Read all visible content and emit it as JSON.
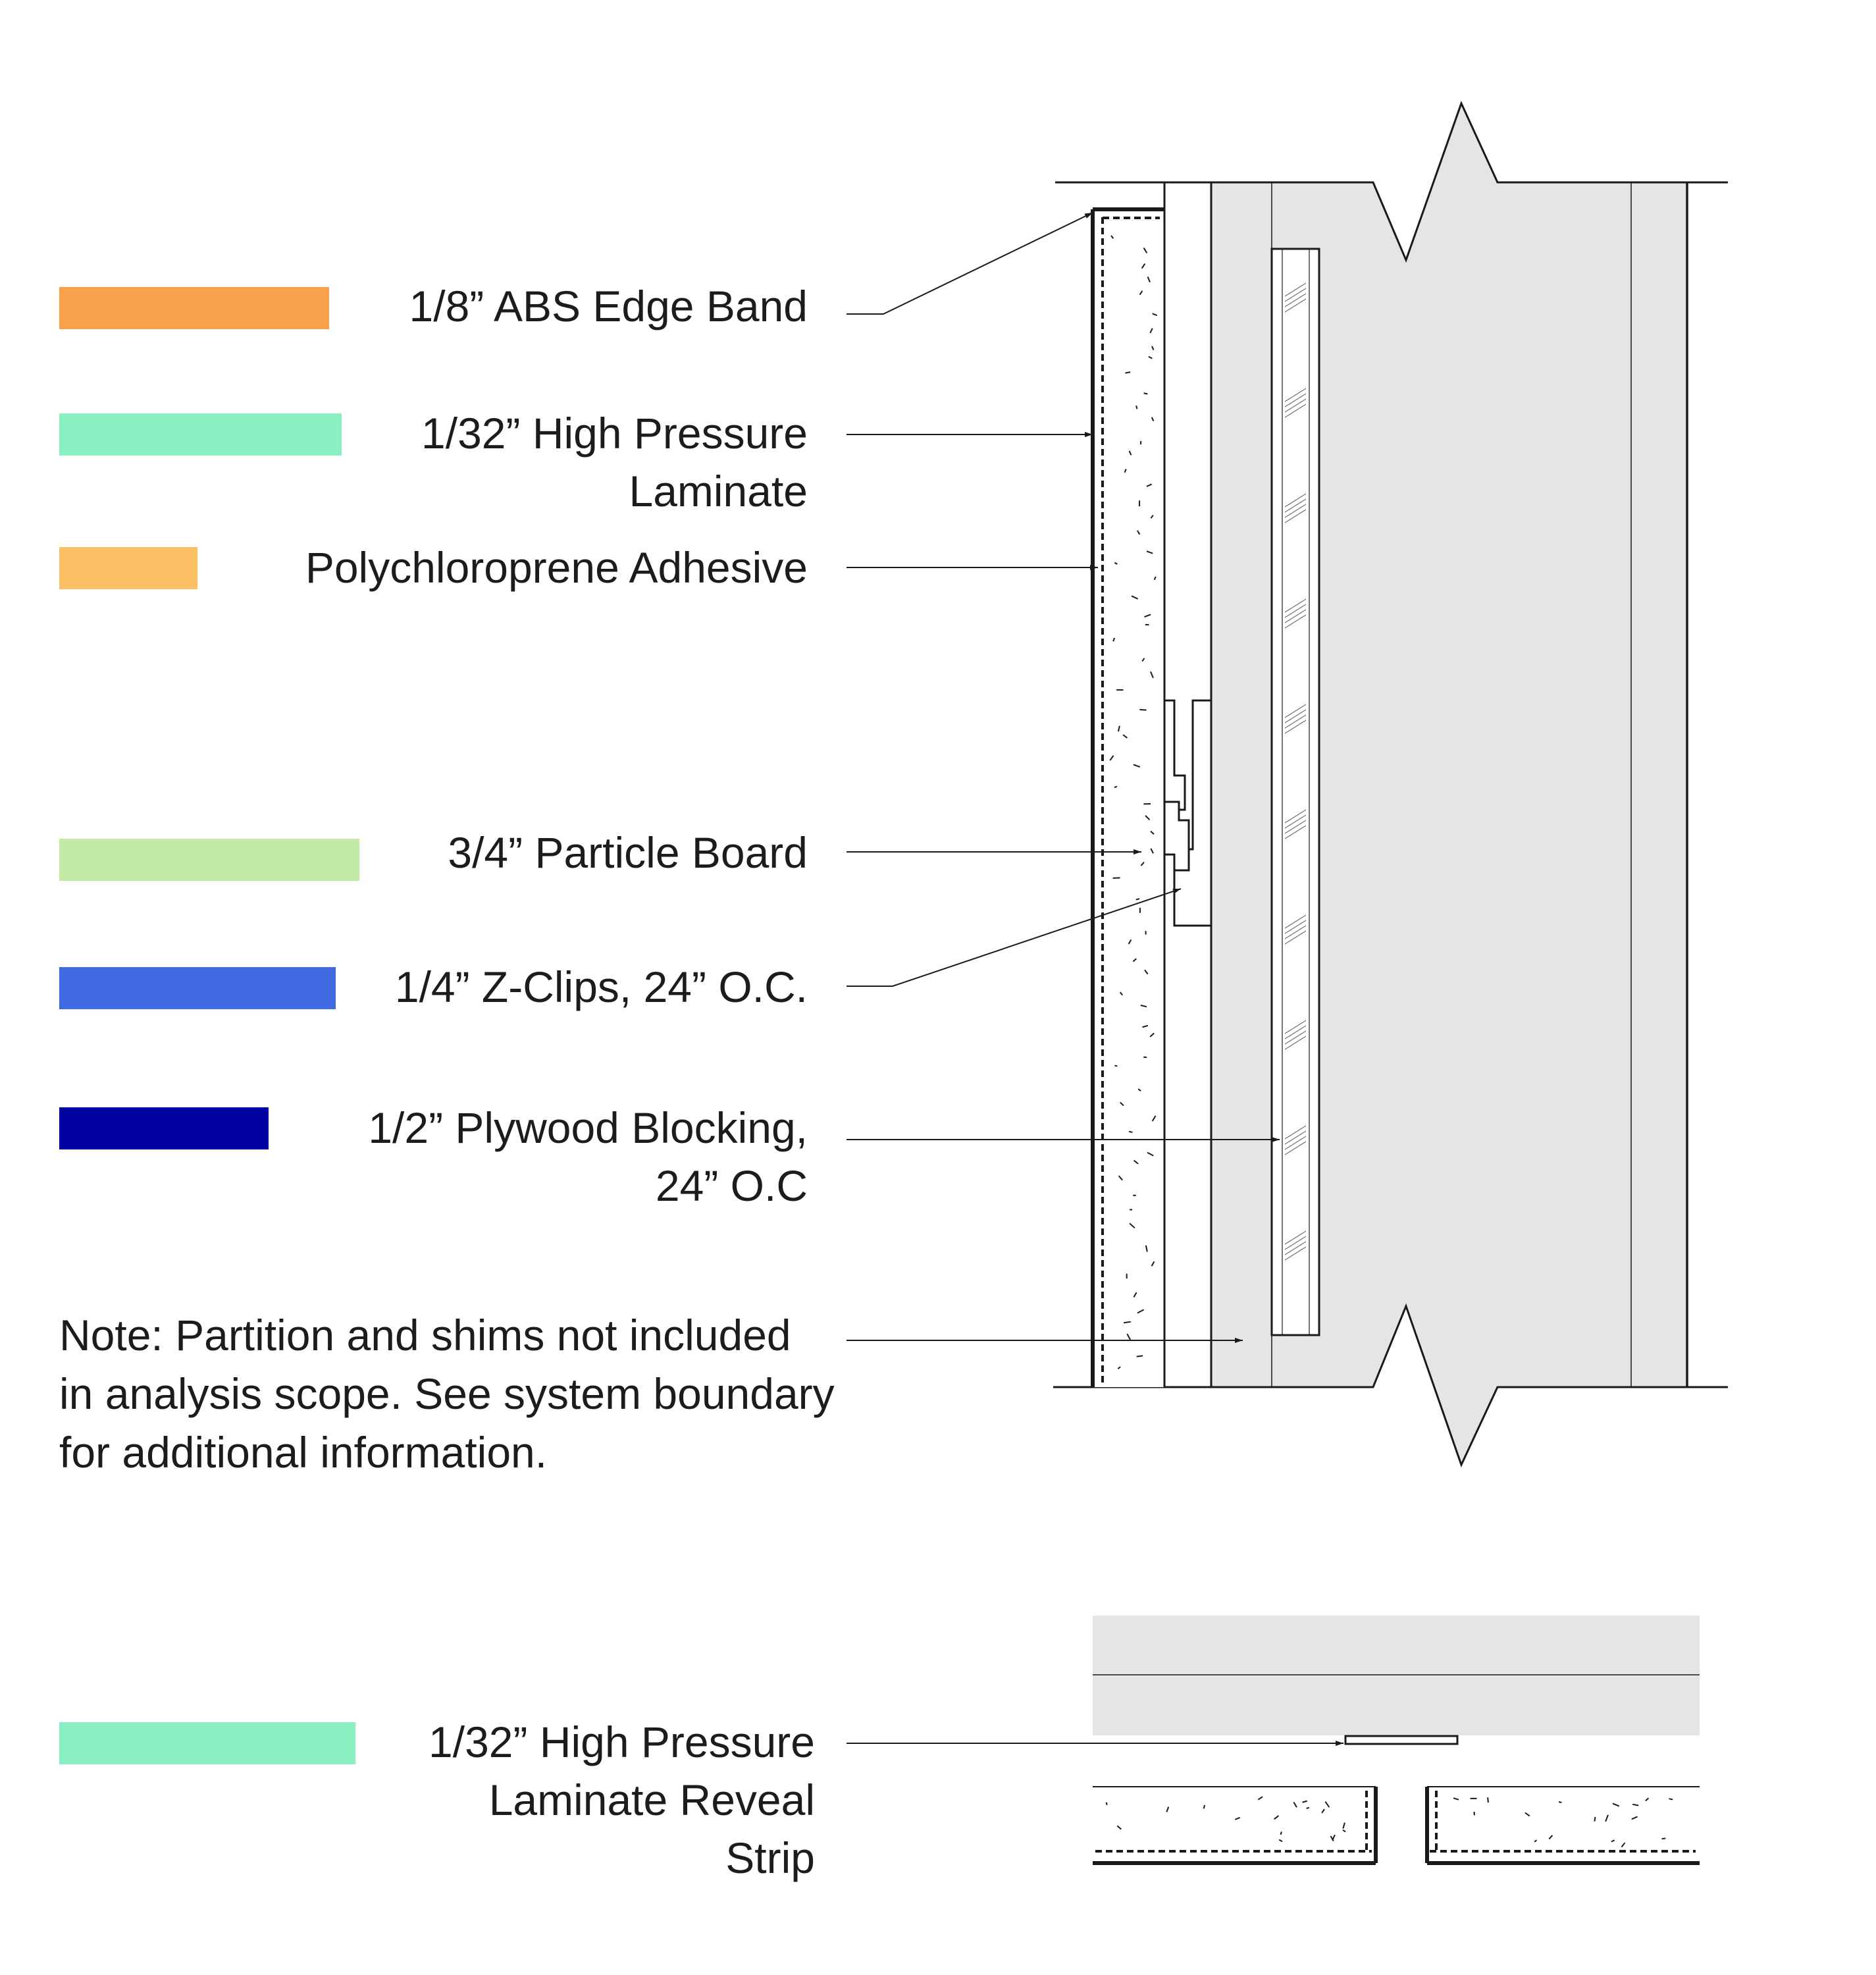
{
  "legend": [
    {
      "id": "abs-edge-band",
      "lines": [
        "1/8” ABS Edge Band"
      ],
      "color": "#f7a24b"
    },
    {
      "id": "hpl",
      "lines": [
        "1/32” High Pressure",
        "Laminate"
      ],
      "color": "#8af0c1"
    },
    {
      "id": "adhesive",
      "lines": [
        "Polychloroprene Adhesive"
      ],
      "color": "#fbbe63"
    },
    {
      "id": "particle-board",
      "lines": [
        "3/4” Particle Board"
      ],
      "color": "#c1eba5"
    },
    {
      "id": "z-clips",
      "lines": [
        "1/4” Z-Clips, 24” O.C."
      ],
      "color": "#4169e1"
    },
    {
      "id": "plywood-blocking",
      "lines": [
        "1/2” Plywood Blocking,",
        "24” O.C"
      ],
      "color": "#0202a0"
    },
    {
      "id": "hpl-reveal-strip",
      "lines": [
        "1/32” High Pressure",
        "Laminate Reveal",
        "Strip"
      ],
      "color": "#8af0c1"
    }
  ],
  "note": "Note: Partition and shims not included in analysis scope. See system boundary for additional information.",
  "colors": {
    "line": "#1a1a1a",
    "partition_fill": "#e5e5e5"
  }
}
